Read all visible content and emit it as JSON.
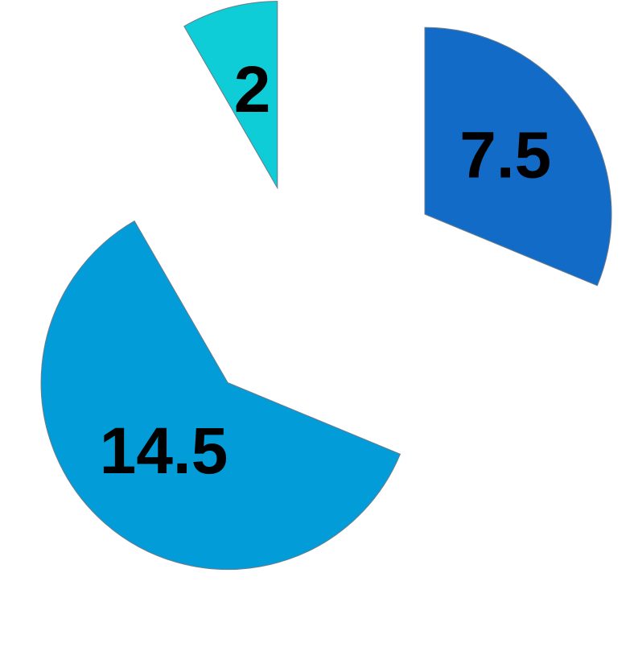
{
  "chart_data": {
    "type": "pie",
    "values": [
      7.5,
      14.5,
      2
    ],
    "labels": [
      "7.5",
      "14.5",
      "2"
    ],
    "colors": [
      "#126cc7",
      "#029cd8",
      "#0ecdd6"
    ],
    "start_angle_deg": 0,
    "direction": "clockwise",
    "exploded": true
  }
}
